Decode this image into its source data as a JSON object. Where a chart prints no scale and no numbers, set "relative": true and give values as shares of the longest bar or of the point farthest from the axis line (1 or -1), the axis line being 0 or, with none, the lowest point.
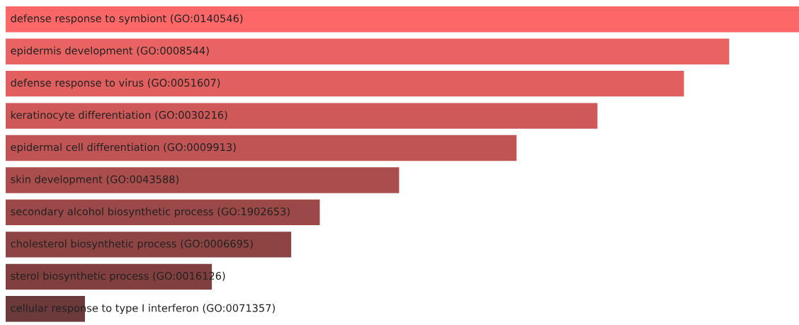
{
  "chart_data": {
    "type": "bar",
    "orientation": "horizontal",
    "relative": true,
    "categories": [
      "defense response to symbiont (GO:0140546)",
      "epidermis development (GO:0008544)",
      "defense response to virus (GO:0051607)",
      "keratinocyte differentiation (GO:0030216)",
      "epidermal cell differentiation (GO:0009913)",
      "skin development (GO:0043588)",
      "secondary alcohol biosynthetic process (GO:1902653)",
      "cholesterol biosynthetic process (GO:0006695)",
      "sterol biosynthetic process (GO:0016126)",
      "cellular response to type I interferon (GO:0071357)"
    ],
    "values": [
      1,
      0.912,
      0.855,
      0.746,
      0.644,
      0.496,
      0.396,
      0.36,
      0.26,
      0.1
    ],
    "colors": [
      "#fd6767",
      "#e96363",
      "#e15f5f",
      "#cf5959",
      "#c05454",
      "#ab4d4d",
      "#9b4848",
      "#8f4444",
      "#813f3f",
      "#6c3a3a"
    ]
  }
}
